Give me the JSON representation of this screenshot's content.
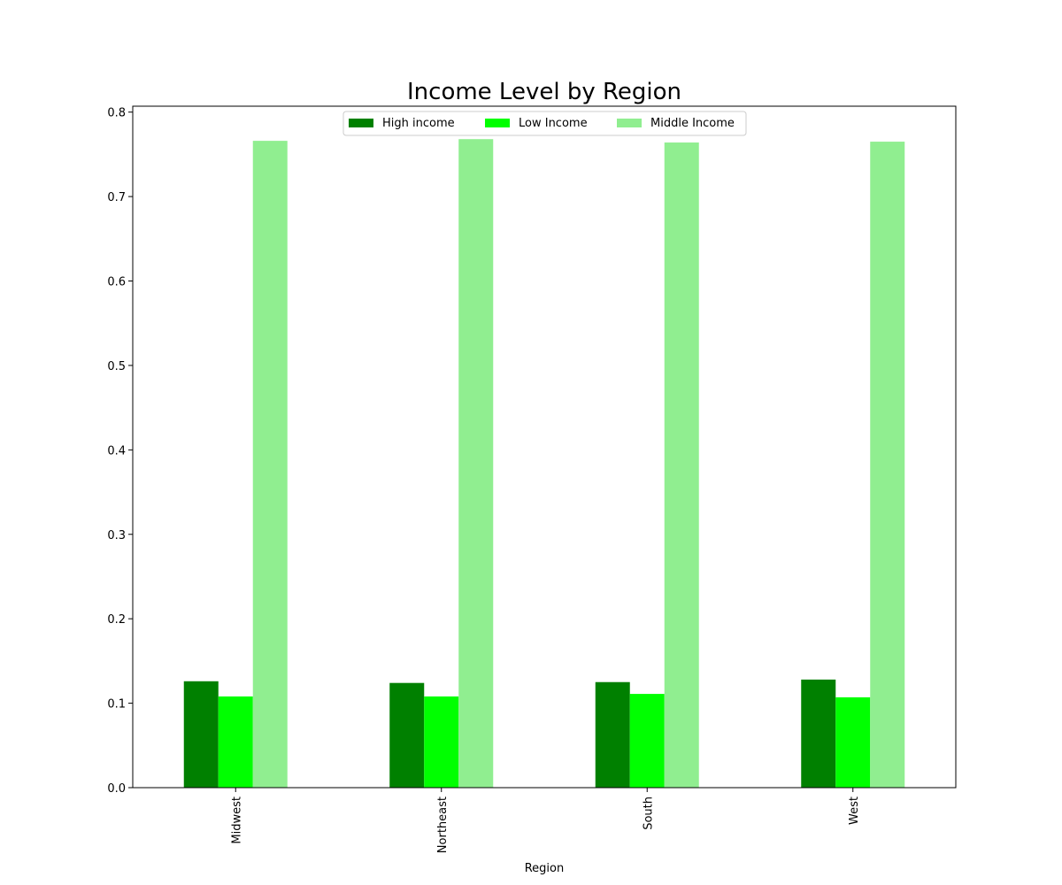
{
  "chart_data": {
    "type": "bar",
    "title": "Income Level by Region",
    "xlabel": "Region",
    "ylabel": "",
    "categories": [
      "Midwest",
      "Northeast",
      "South",
      "West"
    ],
    "series": [
      {
        "name": "High income",
        "color": "#008000",
        "values": [
          0.126,
          0.124,
          0.125,
          0.128
        ]
      },
      {
        "name": "Low Income",
        "color": "#00ff00",
        "values": [
          0.108,
          0.108,
          0.111,
          0.107
        ]
      },
      {
        "name": "Middle Income",
        "color": "#90ee90",
        "values": [
          0.766,
          0.768,
          0.764,
          0.765
        ]
      }
    ],
    "ylim": [
      0,
      0.807
    ],
    "yticks": [
      "0.0",
      "0.1",
      "0.2",
      "0.3",
      "0.4",
      "0.5",
      "0.6",
      "0.7",
      "0.8"
    ],
    "grid": false,
    "legend_position": "top-center"
  }
}
